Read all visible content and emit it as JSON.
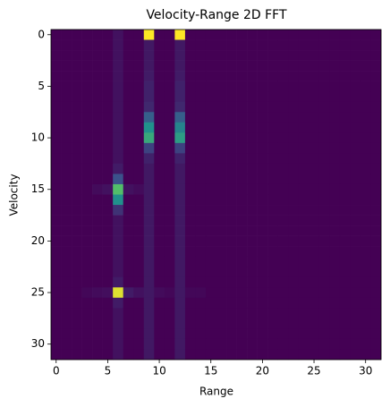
{
  "chart_data": {
    "type": "heatmap",
    "title": "Velocity-Range 2D FFT",
    "x_label": "Range",
    "y_label": "Velocity",
    "colormap": "viridis",
    "xlim": [
      -0.5,
      31.5
    ],
    "ylim": [
      31.5,
      -0.5
    ],
    "xticks": [
      0,
      5,
      10,
      15,
      20,
      25,
      30
    ],
    "yticks": [
      0,
      5,
      10,
      15,
      20,
      25,
      30
    ],
    "z": [
      [
        0,
        0,
        0,
        0,
        0,
        0,
        0.05,
        0,
        0,
        1,
        0,
        0,
        1,
        0,
        0,
        0,
        0,
        0,
        0,
        0,
        0,
        0,
        0,
        0,
        0,
        0,
        0,
        0,
        0,
        0,
        0,
        0
      ],
      [
        0,
        0,
        0,
        0,
        0,
        0,
        0.05,
        0,
        0,
        0.07,
        0,
        0,
        0.07,
        0,
        0,
        0,
        0,
        0,
        0,
        0,
        0,
        0,
        0,
        0,
        0,
        0,
        0,
        0,
        0,
        0,
        0,
        0
      ],
      [
        0,
        0,
        0,
        0,
        0,
        0,
        0.05,
        0,
        0,
        0.07,
        0,
        0,
        0.07,
        0,
        0,
        0,
        0,
        0,
        0,
        0,
        0,
        0,
        0,
        0,
        0,
        0,
        0,
        0,
        0,
        0,
        0,
        0
      ],
      [
        0,
        0,
        0,
        0,
        0,
        0,
        0.05,
        0,
        0,
        0.07,
        0,
        0,
        0.07,
        0,
        0,
        0,
        0,
        0,
        0,
        0,
        0,
        0,
        0,
        0,
        0,
        0,
        0,
        0,
        0,
        0,
        0,
        0
      ],
      [
        0,
        0,
        0,
        0,
        0,
        0,
        0.05,
        0,
        0,
        0.08,
        0,
        0,
        0.08,
        0,
        0,
        0,
        0,
        0,
        0,
        0,
        0,
        0,
        0,
        0,
        0,
        0,
        0,
        0,
        0,
        0,
        0,
        0
      ],
      [
        0,
        0,
        0,
        0,
        0,
        0,
        0.05,
        0,
        0,
        0.1,
        0,
        0,
        0.1,
        0,
        0,
        0,
        0,
        0,
        0,
        0,
        0,
        0,
        0,
        0,
        0,
        0,
        0,
        0,
        0,
        0,
        0,
        0
      ],
      [
        0,
        0,
        0,
        0,
        0,
        0,
        0.05,
        0,
        0,
        0.1,
        0,
        0,
        0.1,
        0,
        0,
        0,
        0,
        0,
        0,
        0,
        0,
        0,
        0,
        0,
        0,
        0,
        0,
        0,
        0,
        0,
        0,
        0
      ],
      [
        0,
        0,
        0,
        0,
        0,
        0,
        0.05,
        0,
        0,
        0.12,
        0,
        0,
        0.12,
        0,
        0,
        0,
        0,
        0,
        0,
        0,
        0,
        0,
        0,
        0,
        0,
        0,
        0,
        0,
        0,
        0,
        0,
        0
      ],
      [
        0,
        0,
        0,
        0,
        0,
        0,
        0.05,
        0,
        0,
        0.3,
        0,
        0,
        0.3,
        0,
        0,
        0,
        0,
        0,
        0,
        0,
        0,
        0,
        0,
        0,
        0,
        0,
        0,
        0,
        0,
        0,
        0,
        0
      ],
      [
        0,
        0,
        0,
        0,
        0,
        0,
        0.05,
        0,
        0,
        0.5,
        0,
        0,
        0.45,
        0,
        0,
        0,
        0,
        0,
        0,
        0,
        0,
        0,
        0,
        0,
        0,
        0,
        0,
        0,
        0,
        0,
        0,
        0
      ],
      [
        0,
        0,
        0,
        0,
        0,
        0,
        0.05,
        0,
        0,
        0.6,
        0,
        0,
        0.55,
        0,
        0,
        0,
        0,
        0,
        0,
        0,
        0,
        0,
        0,
        0,
        0,
        0,
        0,
        0,
        0,
        0,
        0,
        0
      ],
      [
        0,
        0,
        0,
        0,
        0,
        0,
        0.05,
        0,
        0,
        0.2,
        0,
        0,
        0.2,
        0,
        0,
        0,
        0,
        0,
        0,
        0,
        0,
        0,
        0,
        0,
        0,
        0,
        0,
        0,
        0,
        0,
        0,
        0
      ],
      [
        0,
        0,
        0,
        0,
        0,
        0,
        0.05,
        0,
        0,
        0.1,
        0,
        0,
        0.1,
        0,
        0,
        0,
        0,
        0,
        0,
        0,
        0,
        0,
        0,
        0,
        0,
        0,
        0,
        0,
        0,
        0,
        0,
        0
      ],
      [
        0,
        0,
        0,
        0,
        0,
        0,
        0.08,
        0,
        0,
        0.07,
        0,
        0,
        0.07,
        0,
        0,
        0,
        0,
        0,
        0,
        0,
        0,
        0,
        0,
        0,
        0,
        0,
        0,
        0,
        0,
        0,
        0,
        0
      ],
      [
        0,
        0,
        0,
        0,
        0,
        0,
        0.25,
        0,
        0,
        0.07,
        0,
        0,
        0.07,
        0,
        0,
        0,
        0,
        0,
        0,
        0,
        0,
        0,
        0,
        0,
        0,
        0,
        0,
        0,
        0,
        0,
        0,
        0
      ],
      [
        0,
        0,
        0,
        0,
        0.03,
        0.05,
        0.7,
        0.05,
        0.03,
        0.07,
        0,
        0,
        0.07,
        0,
        0,
        0,
        0,
        0,
        0,
        0,
        0,
        0,
        0,
        0,
        0,
        0,
        0,
        0,
        0,
        0,
        0,
        0
      ],
      [
        0,
        0,
        0,
        0,
        0,
        0,
        0.5,
        0,
        0,
        0.07,
        0,
        0,
        0.07,
        0,
        0,
        0,
        0,
        0,
        0,
        0,
        0,
        0,
        0,
        0,
        0,
        0,
        0,
        0,
        0,
        0,
        0,
        0
      ],
      [
        0,
        0,
        0,
        0,
        0,
        0,
        0.15,
        0,
        0,
        0.07,
        0,
        0,
        0.07,
        0,
        0,
        0,
        0,
        0,
        0,
        0,
        0,
        0,
        0,
        0,
        0,
        0,
        0,
        0,
        0,
        0,
        0,
        0
      ],
      [
        0,
        0,
        0,
        0,
        0,
        0,
        0.05,
        0,
        0,
        0.07,
        0,
        0,
        0.07,
        0,
        0,
        0,
        0,
        0,
        0,
        0,
        0,
        0,
        0,
        0,
        0,
        0,
        0,
        0,
        0,
        0,
        0,
        0
      ],
      [
        0,
        0,
        0,
        0,
        0,
        0,
        0.05,
        0,
        0,
        0.07,
        0,
        0,
        0.07,
        0,
        0,
        0,
        0,
        0,
        0,
        0,
        0,
        0,
        0,
        0,
        0,
        0,
        0,
        0,
        0,
        0,
        0,
        0
      ],
      [
        0,
        0,
        0,
        0,
        0,
        0,
        0.05,
        0,
        0,
        0.07,
        0,
        0,
        0.07,
        0,
        0,
        0,
        0,
        0,
        0,
        0,
        0,
        0,
        0,
        0,
        0,
        0,
        0,
        0,
        0,
        0,
        0,
        0
      ],
      [
        0,
        0,
        0,
        0,
        0,
        0,
        0.05,
        0,
        0,
        0.07,
        0,
        0,
        0.07,
        0,
        0,
        0,
        0,
        0,
        0,
        0,
        0,
        0,
        0,
        0,
        0,
        0,
        0,
        0,
        0,
        0,
        0,
        0
      ],
      [
        0,
        0,
        0,
        0,
        0,
        0,
        0.05,
        0,
        0,
        0.07,
        0,
        0,
        0.07,
        0,
        0,
        0,
        0,
        0,
        0,
        0,
        0,
        0,
        0,
        0,
        0,
        0,
        0,
        0,
        0,
        0,
        0,
        0
      ],
      [
        0,
        0,
        0,
        0,
        0,
        0,
        0.05,
        0,
        0,
        0.07,
        0,
        0,
        0.07,
        0,
        0,
        0,
        0,
        0,
        0,
        0,
        0,
        0,
        0,
        0,
        0,
        0,
        0,
        0,
        0,
        0,
        0,
        0
      ],
      [
        0,
        0,
        0,
        0,
        0,
        0,
        0.08,
        0,
        0,
        0.07,
        0,
        0,
        0.07,
        0,
        0,
        0,
        0,
        0,
        0,
        0,
        0,
        0,
        0,
        0,
        0,
        0,
        0,
        0,
        0,
        0,
        0,
        0
      ],
      [
        0,
        0,
        0,
        0.02,
        0.03,
        0.04,
        0.95,
        0.08,
        0.05,
        0.07,
        0.03,
        0.02,
        0.07,
        0.02,
        0.02,
        0,
        0,
        0,
        0,
        0,
        0,
        0,
        0,
        0,
        0,
        0,
        0,
        0,
        0,
        0,
        0,
        0
      ],
      [
        0,
        0,
        0,
        0,
        0,
        0,
        0.08,
        0,
        0,
        0.07,
        0,
        0,
        0.07,
        0,
        0,
        0,
        0,
        0,
        0,
        0,
        0,
        0,
        0,
        0,
        0,
        0,
        0,
        0,
        0,
        0,
        0,
        0
      ],
      [
        0,
        0,
        0,
        0,
        0,
        0,
        0.05,
        0,
        0,
        0.07,
        0,
        0,
        0.07,
        0,
        0,
        0,
        0,
        0,
        0,
        0,
        0,
        0,
        0,
        0,
        0,
        0,
        0,
        0,
        0,
        0,
        0,
        0
      ],
      [
        0,
        0,
        0,
        0,
        0,
        0,
        0.05,
        0,
        0,
        0.07,
        0,
        0,
        0.07,
        0,
        0,
        0,
        0,
        0,
        0,
        0,
        0,
        0,
        0,
        0,
        0,
        0,
        0,
        0,
        0,
        0,
        0,
        0
      ],
      [
        0,
        0,
        0,
        0,
        0,
        0,
        0.05,
        0,
        0,
        0.07,
        0,
        0,
        0.07,
        0,
        0,
        0,
        0,
        0,
        0,
        0,
        0,
        0,
        0,
        0,
        0,
        0,
        0,
        0,
        0,
        0,
        0,
        0
      ],
      [
        0,
        0,
        0,
        0,
        0,
        0,
        0.05,
        0,
        0,
        0.07,
        0,
        0,
        0.07,
        0,
        0,
        0,
        0,
        0,
        0,
        0,
        0,
        0,
        0,
        0,
        0,
        0,
        0,
        0,
        0,
        0,
        0,
        0
      ],
      [
        0,
        0,
        0,
        0,
        0,
        0,
        0.05,
        0,
        0,
        0.07,
        0,
        0,
        0.07,
        0,
        0,
        0,
        0,
        0,
        0,
        0,
        0,
        0,
        0,
        0,
        0,
        0,
        0,
        0,
        0,
        0,
        0,
        0
      ]
    ]
  }
}
